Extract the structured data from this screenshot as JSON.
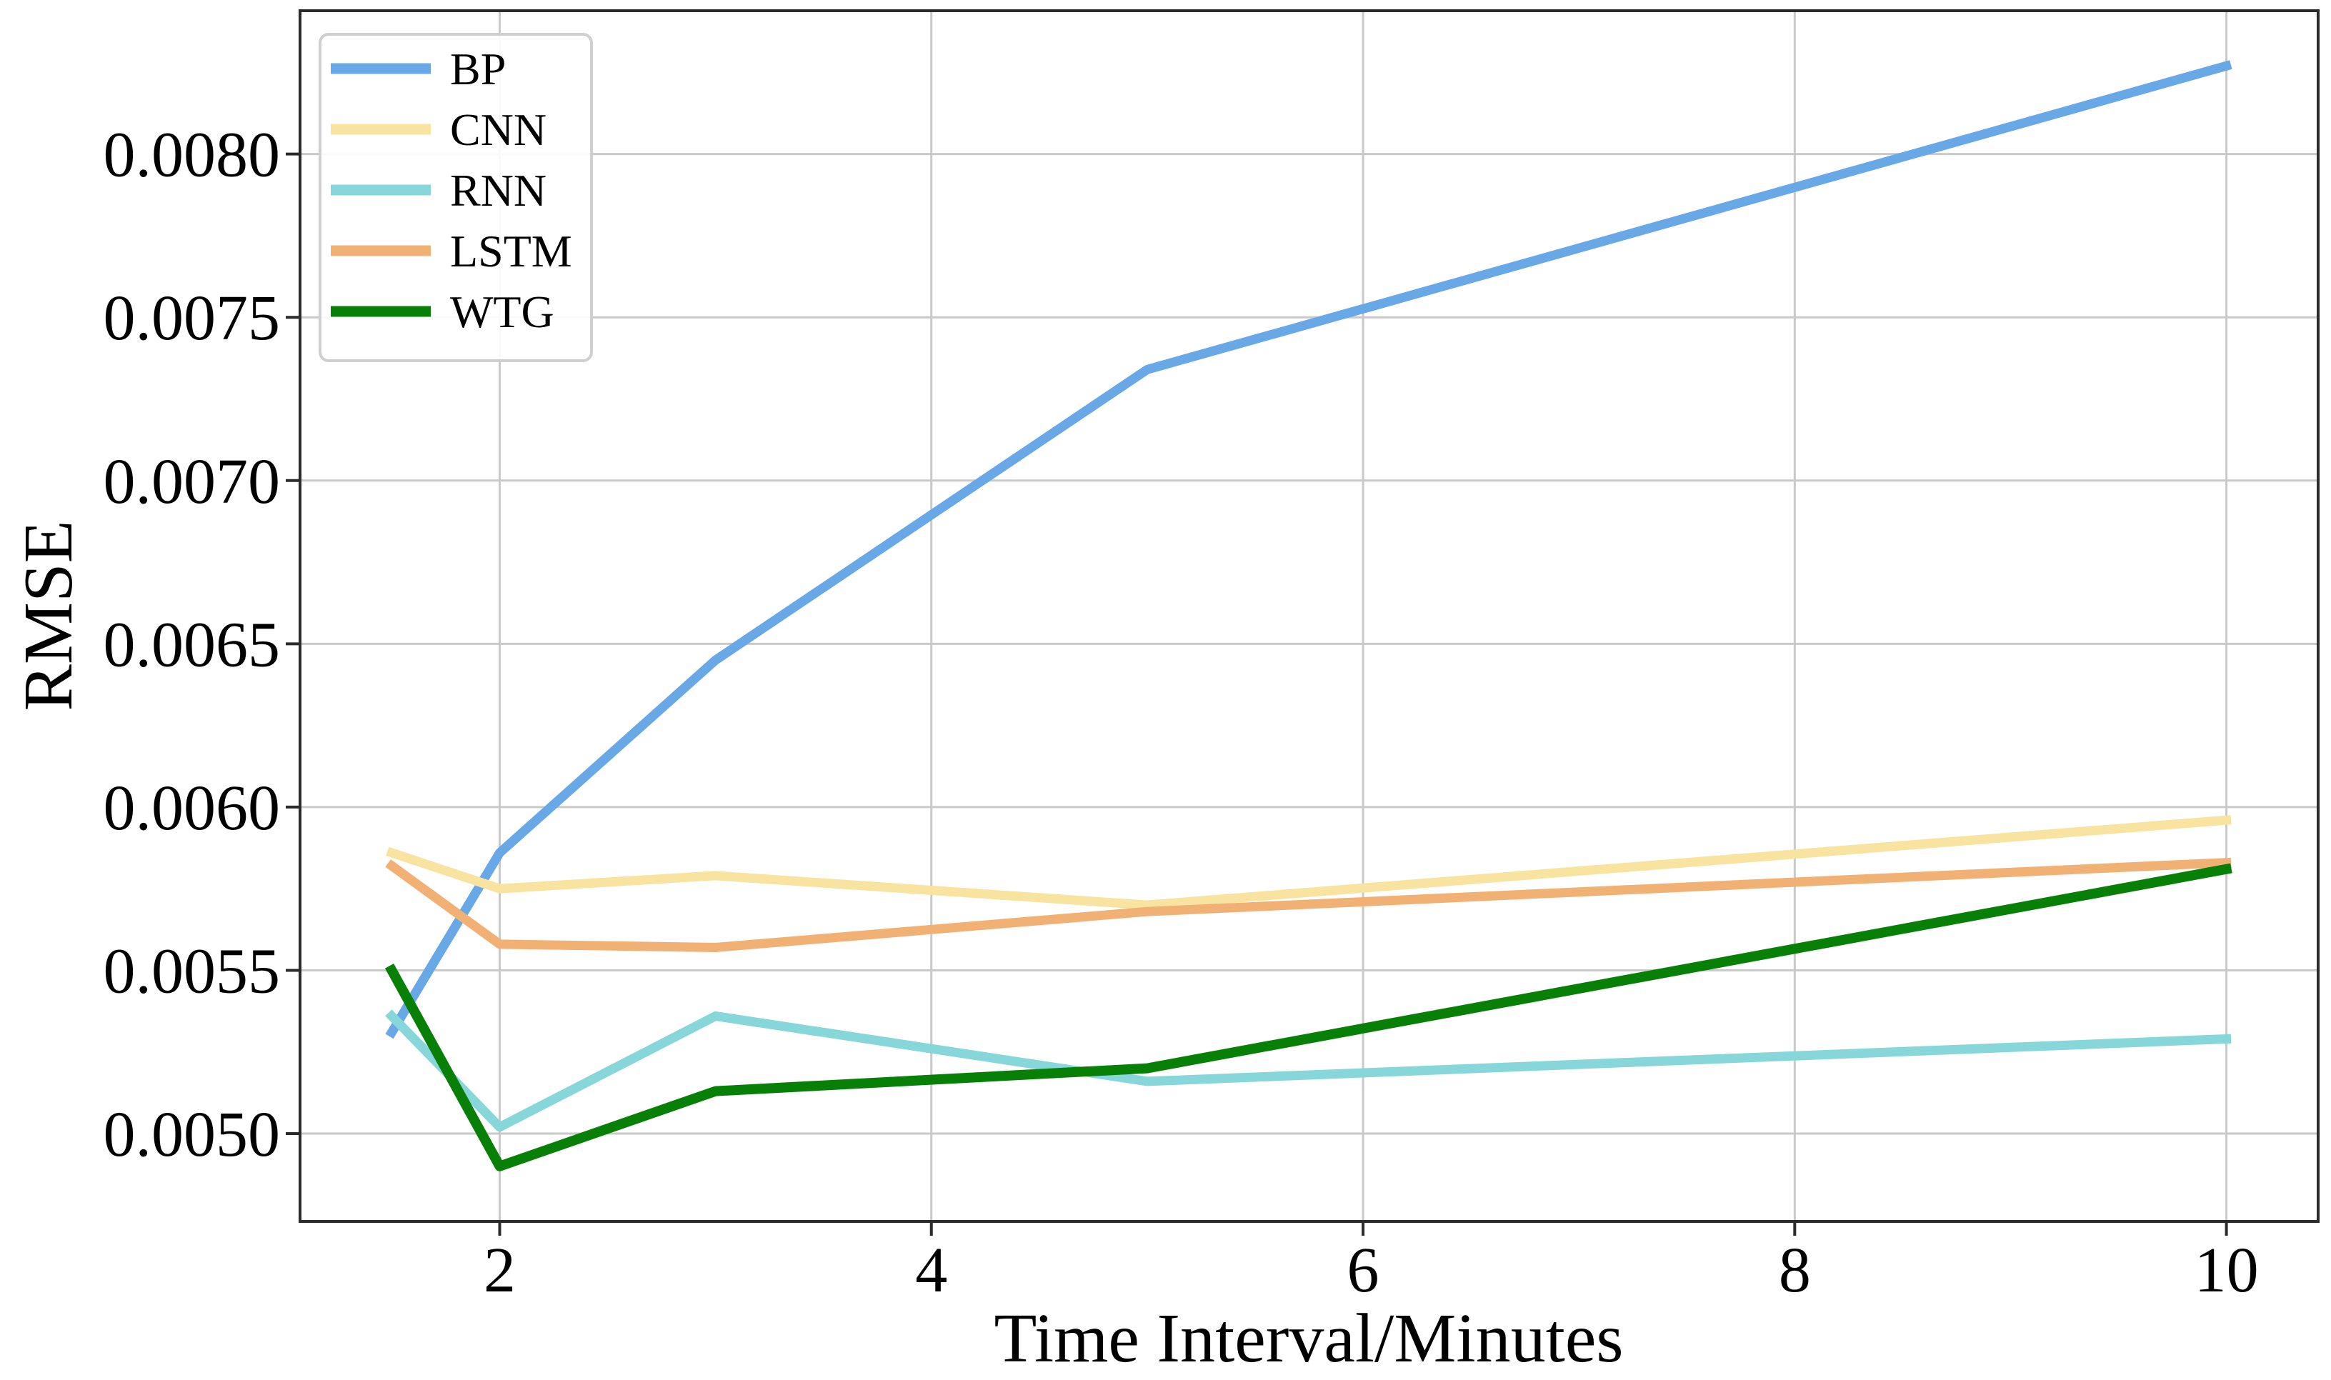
{
  "chart_data": {
    "type": "line",
    "title": "",
    "xlabel": "Time Interval/Minutes",
    "ylabel": "RMSE",
    "x": [
      1.5,
      2,
      3,
      5,
      10
    ],
    "series": [
      {
        "name": "BP",
        "color": "#68a8e6",
        "linewidth": 13,
        "values": [
          0.00531,
          0.00586,
          0.00645,
          0.00734,
          0.00827
        ]
      },
      {
        "name": "CNN",
        "color": "#f9e3a0",
        "linewidth": 13,
        "values": [
          0.00586,
          0.00575,
          0.00579,
          0.0057,
          0.00596
        ]
      },
      {
        "name": "RNN",
        "color": "#87d6da",
        "linewidth": 13,
        "values": [
          0.00536,
          0.00502,
          0.00536,
          0.00516,
          0.00529
        ]
      },
      {
        "name": "LSTM",
        "color": "#f2b174",
        "linewidth": 13,
        "values": [
          0.00582,
          0.00558,
          0.00557,
          0.00568,
          0.00583
        ]
      },
      {
        "name": "WTG",
        "color": "#088008",
        "linewidth": 14,
        "values": [
          0.0055,
          0.0049,
          0.00513,
          0.0052,
          0.00581
        ]
      }
    ],
    "xticks": [
      2,
      4,
      6,
      8,
      10
    ],
    "xtick_labels": [
      "2",
      "4",
      "6",
      "8",
      "10"
    ],
    "yticks": [
      0.005,
      0.0055,
      0.006,
      0.0065,
      0.007,
      0.0075,
      0.008
    ],
    "ytick_labels": [
      "0.0050",
      "0.0055",
      "0.0060",
      "0.0065",
      "0.0070",
      "0.0075",
      "0.0080"
    ],
    "xlim": [
      1.075,
      10.425
    ],
    "ylim": [
      0.004731,
      0.008439
    ],
    "grid": true,
    "legend_position": "upper-left",
    "colors": {
      "grid": "#c9c9c9",
      "spine": "#2b2b2b",
      "legend_border": "#cfcfcf",
      "background": "#ffffff"
    }
  }
}
